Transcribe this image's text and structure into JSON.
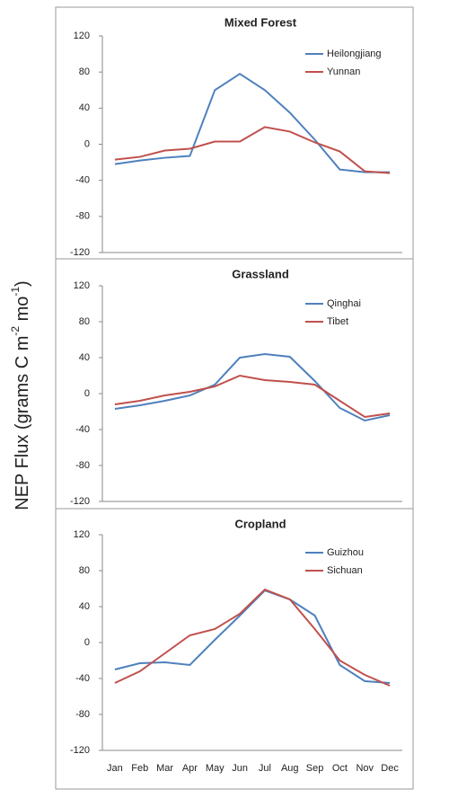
{
  "y_label": [
    "NEP Flux (grams C m",
    "-2",
    " mo",
    "-1",
    ")"
  ],
  "chart_data": [
    {
      "type": "line",
      "title": "Mixed Forest",
      "ylim": [
        -120,
        120
      ],
      "yticks": [
        -120,
        -80,
        -40,
        0,
        40,
        80,
        120
      ],
      "series": [
        {
          "name": "Heilongjiang",
          "color": "#4f81bd",
          "values": [
            -22,
            -18,
            -15,
            -13,
            60,
            78,
            60,
            35,
            5,
            -28,
            -31,
            -31
          ]
        },
        {
          "name": "Yunnan",
          "color": "#c0504d",
          "values": [
            -17,
            -14,
            -7,
            -5,
            3,
            3,
            19,
            14,
            2,
            -8,
            -30,
            -32
          ]
        }
      ]
    },
    {
      "type": "line",
      "title": "Grassland",
      "ylim": [
        -120,
        120
      ],
      "yticks": [
        -120,
        -80,
        -40,
        0,
        40,
        80,
        120
      ],
      "series": [
        {
          "name": "Qinghai",
          "color": "#4f81bd",
          "values": [
            -17,
            -13,
            -8,
            -2,
            10,
            40,
            44,
            41,
            14,
            -16,
            -30,
            -24
          ]
        },
        {
          "name": "Tibet",
          "color": "#c0504d",
          "values": [
            -12,
            -8,
            -2,
            2,
            8,
            20,
            15,
            13,
            10,
            -8,
            -26,
            -22
          ]
        }
      ]
    },
    {
      "type": "line",
      "title": "Cropland",
      "ylim": [
        -120,
        120
      ],
      "yticks": [
        -120,
        -80,
        -40,
        0,
        40,
        80,
        120
      ],
      "categories": [
        "Jan",
        "Feb",
        "Mar",
        "Apr",
        "May",
        "Jun",
        "Jul",
        "Aug",
        "Sep",
        "Oct",
        "Nov",
        "Dec"
      ],
      "series": [
        {
          "name": "Guizhou",
          "color": "#4f81bd",
          "values": [
            -30,
            -23,
            -22,
            -25,
            3,
            30,
            58,
            48,
            30,
            -25,
            -43,
            -45
          ]
        },
        {
          "name": "Sichuan",
          "color": "#c0504d",
          "values": [
            -45,
            -32,
            -12,
            8,
            15,
            32,
            59,
            48,
            15,
            -20,
            -36,
            -48
          ]
        }
      ]
    }
  ]
}
